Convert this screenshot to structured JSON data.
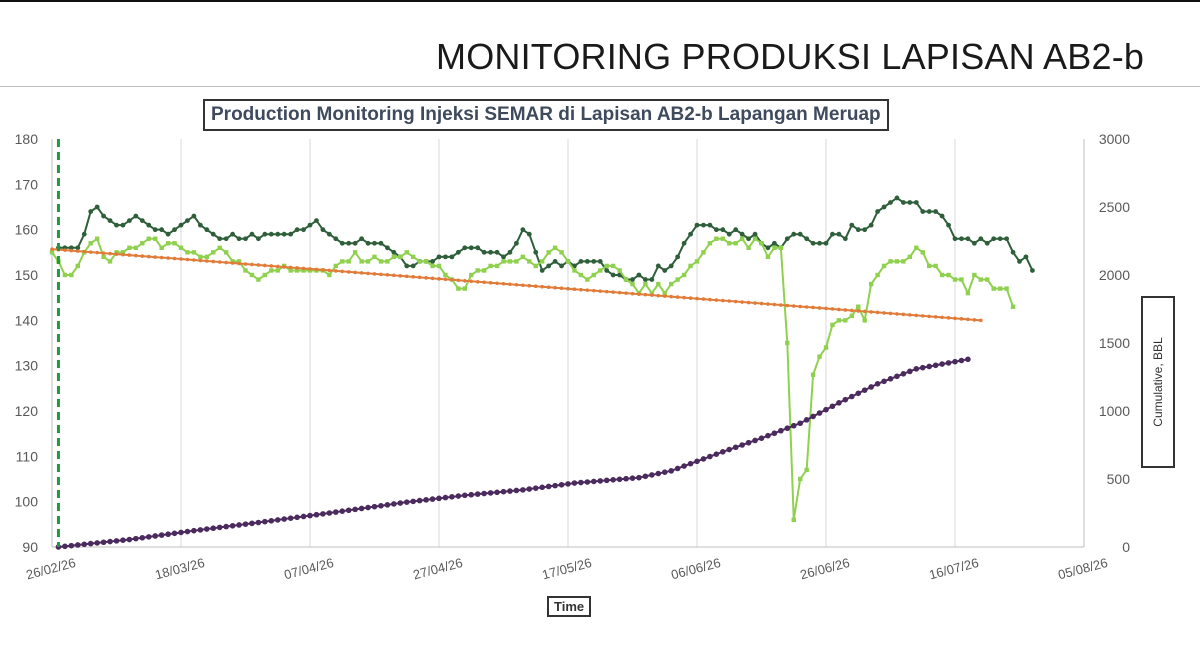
{
  "slide": {
    "title": "MONITORING PRODUKSI LAPISAN AB2-b"
  },
  "chart_data": {
    "type": "line",
    "title": "Production Monitoring Injeksi SEMAR di Lapisan AB2-b Lapangan Meruap",
    "xlabel": "Time",
    "ylabel": "",
    "y2label": "Cumulative, BBL",
    "x_tick_labels": [
      "26/02/26",
      "18/03/26",
      "07/04/26",
      "27/04/26",
      "17/05/26",
      "06/06/26",
      "26/06/26",
      "16/07/26",
      "05/08/26"
    ],
    "x_range": [
      "2026-02-26",
      "2026-08-05"
    ],
    "ylim": [
      90,
      180
    ],
    "y_ticks": [
      90,
      100,
      110,
      120,
      130,
      140,
      150,
      160,
      170,
      180
    ],
    "y2lim": [
      0,
      3000
    ],
    "y2_ticks": [
      0,
      500,
      1000,
      1500,
      2000,
      2500,
      3000
    ],
    "grid": "vertical",
    "marker_line": {
      "date": "2026-02-27",
      "style": "dashed",
      "color": "#1e9b3c"
    },
    "series": [
      {
        "axis": "left",
        "color": "#2f5f3a",
        "marker": "circle",
        "start_date": "2026-02-27",
        "step_days": 1,
        "values": [
          156,
          156,
          156,
          156,
          159,
          164,
          165,
          163,
          162,
          161,
          161,
          162,
          163,
          162,
          161,
          160,
          160,
          159,
          160,
          161,
          162,
          163,
          161,
          160,
          159,
          158,
          158,
          159,
          158,
          158,
          159,
          158,
          159,
          159,
          159,
          159,
          159,
          160,
          160,
          161,
          162,
          160,
          159,
          158,
          157,
          157,
          157,
          158,
          157,
          157,
          157,
          156,
          155,
          154,
          152,
          152,
          153,
          153,
          153,
          154,
          154,
          154,
          155,
          156,
          156,
          156,
          155,
          155,
          155,
          154,
          155,
          157,
          160,
          159,
          155,
          151,
          152,
          153,
          152,
          153,
          152,
          153,
          153,
          153,
          153,
          151,
          150,
          150,
          149,
          149,
          150,
          149,
          149,
          152,
          151,
          152,
          154,
          157,
          159,
          161,
          161,
          161,
          160,
          160,
          159,
          160,
          159,
          158,
          159,
          157,
          156,
          157,
          156,
          158,
          159,
          159,
          158,
          157,
          157,
          157,
          159,
          159,
          158,
          161,
          160,
          160,
          161,
          164,
          165,
          166,
          167,
          166,
          166,
          166,
          164,
          164,
          164,
          163,
          161,
          158,
          158,
          158,
          157,
          158,
          157,
          158,
          158,
          158,
          155,
          153,
          154,
          151
        ]
      },
      {
        "axis": "left",
        "color": "#8fd14f",
        "marker": "square",
        "start_date": "2026-02-26",
        "step_days": 1,
        "values": [
          155,
          153,
          150,
          150,
          152,
          155,
          157,
          158,
          154,
          153,
          155,
          155,
          156,
          156,
          157,
          158,
          158,
          156,
          157,
          157,
          156,
          155,
          155,
          154,
          154,
          155,
          156,
          155,
          153,
          153,
          151,
          150,
          149,
          150,
          151,
          151,
          152,
          151,
          151,
          151,
          151,
          151,
          151,
          150,
          152,
          153,
          153,
          155,
          153,
          153,
          154,
          153,
          153,
          154,
          154,
          155,
          154,
          153,
          153,
          152,
          152,
          150,
          149,
          147,
          147,
          150,
          151,
          151,
          152,
          152,
          153,
          153,
          153,
          154,
          153,
          152,
          153,
          155,
          156,
          155,
          153,
          151,
          150,
          149,
          150,
          151,
          152,
          152,
          151,
          149,
          148,
          146,
          148,
          146,
          148,
          146,
          148,
          149,
          150,
          152,
          153,
          155,
          157,
          158,
          158,
          157,
          157,
          158,
          156,
          158,
          157,
          154,
          156,
          156,
          135,
          96,
          105,
          107,
          128,
          132,
          134,
          139,
          140,
          140,
          141,
          143,
          140,
          148,
          150,
          152,
          153,
          153,
          153,
          154,
          156,
          155,
          152,
          152,
          150,
          150,
          149,
          149,
          146,
          150,
          149,
          149,
          147,
          147,
          147,
          143
        ]
      },
      {
        "axis": "left",
        "color": "#e07b39",
        "marker": "circle",
        "label_hidden": true,
        "x_start": "2026-02-26",
        "x_end": "2026-07-20",
        "y_start": 155.7,
        "y_end": 140.0
      },
      {
        "axis": "right",
        "color": "#4b2a5e",
        "marker": "circle",
        "start_date": "2026-02-27",
        "step_days": 1,
        "points": [
          [
            "2026-02-27",
            0
          ],
          [
            "2026-03-02",
            15
          ],
          [
            "2026-03-10",
            55
          ],
          [
            "2026-03-20",
            120
          ],
          [
            "2026-03-30",
            180
          ],
          [
            "2026-04-10",
            250
          ],
          [
            "2026-04-22",
            330
          ],
          [
            "2026-05-01",
            380
          ],
          [
            "2026-05-10",
            420
          ],
          [
            "2026-05-18",
            470
          ],
          [
            "2026-05-28",
            510
          ],
          [
            "2026-06-02",
            560
          ],
          [
            "2026-06-10",
            700
          ],
          [
            "2026-06-16",
            800
          ],
          [
            "2026-06-22",
            910
          ],
          [
            "2026-06-28",
            1060
          ],
          [
            "2026-07-04",
            1200
          ],
          [
            "2026-07-10",
            1310
          ],
          [
            "2026-07-18",
            1380
          ]
        ]
      }
    ]
  }
}
